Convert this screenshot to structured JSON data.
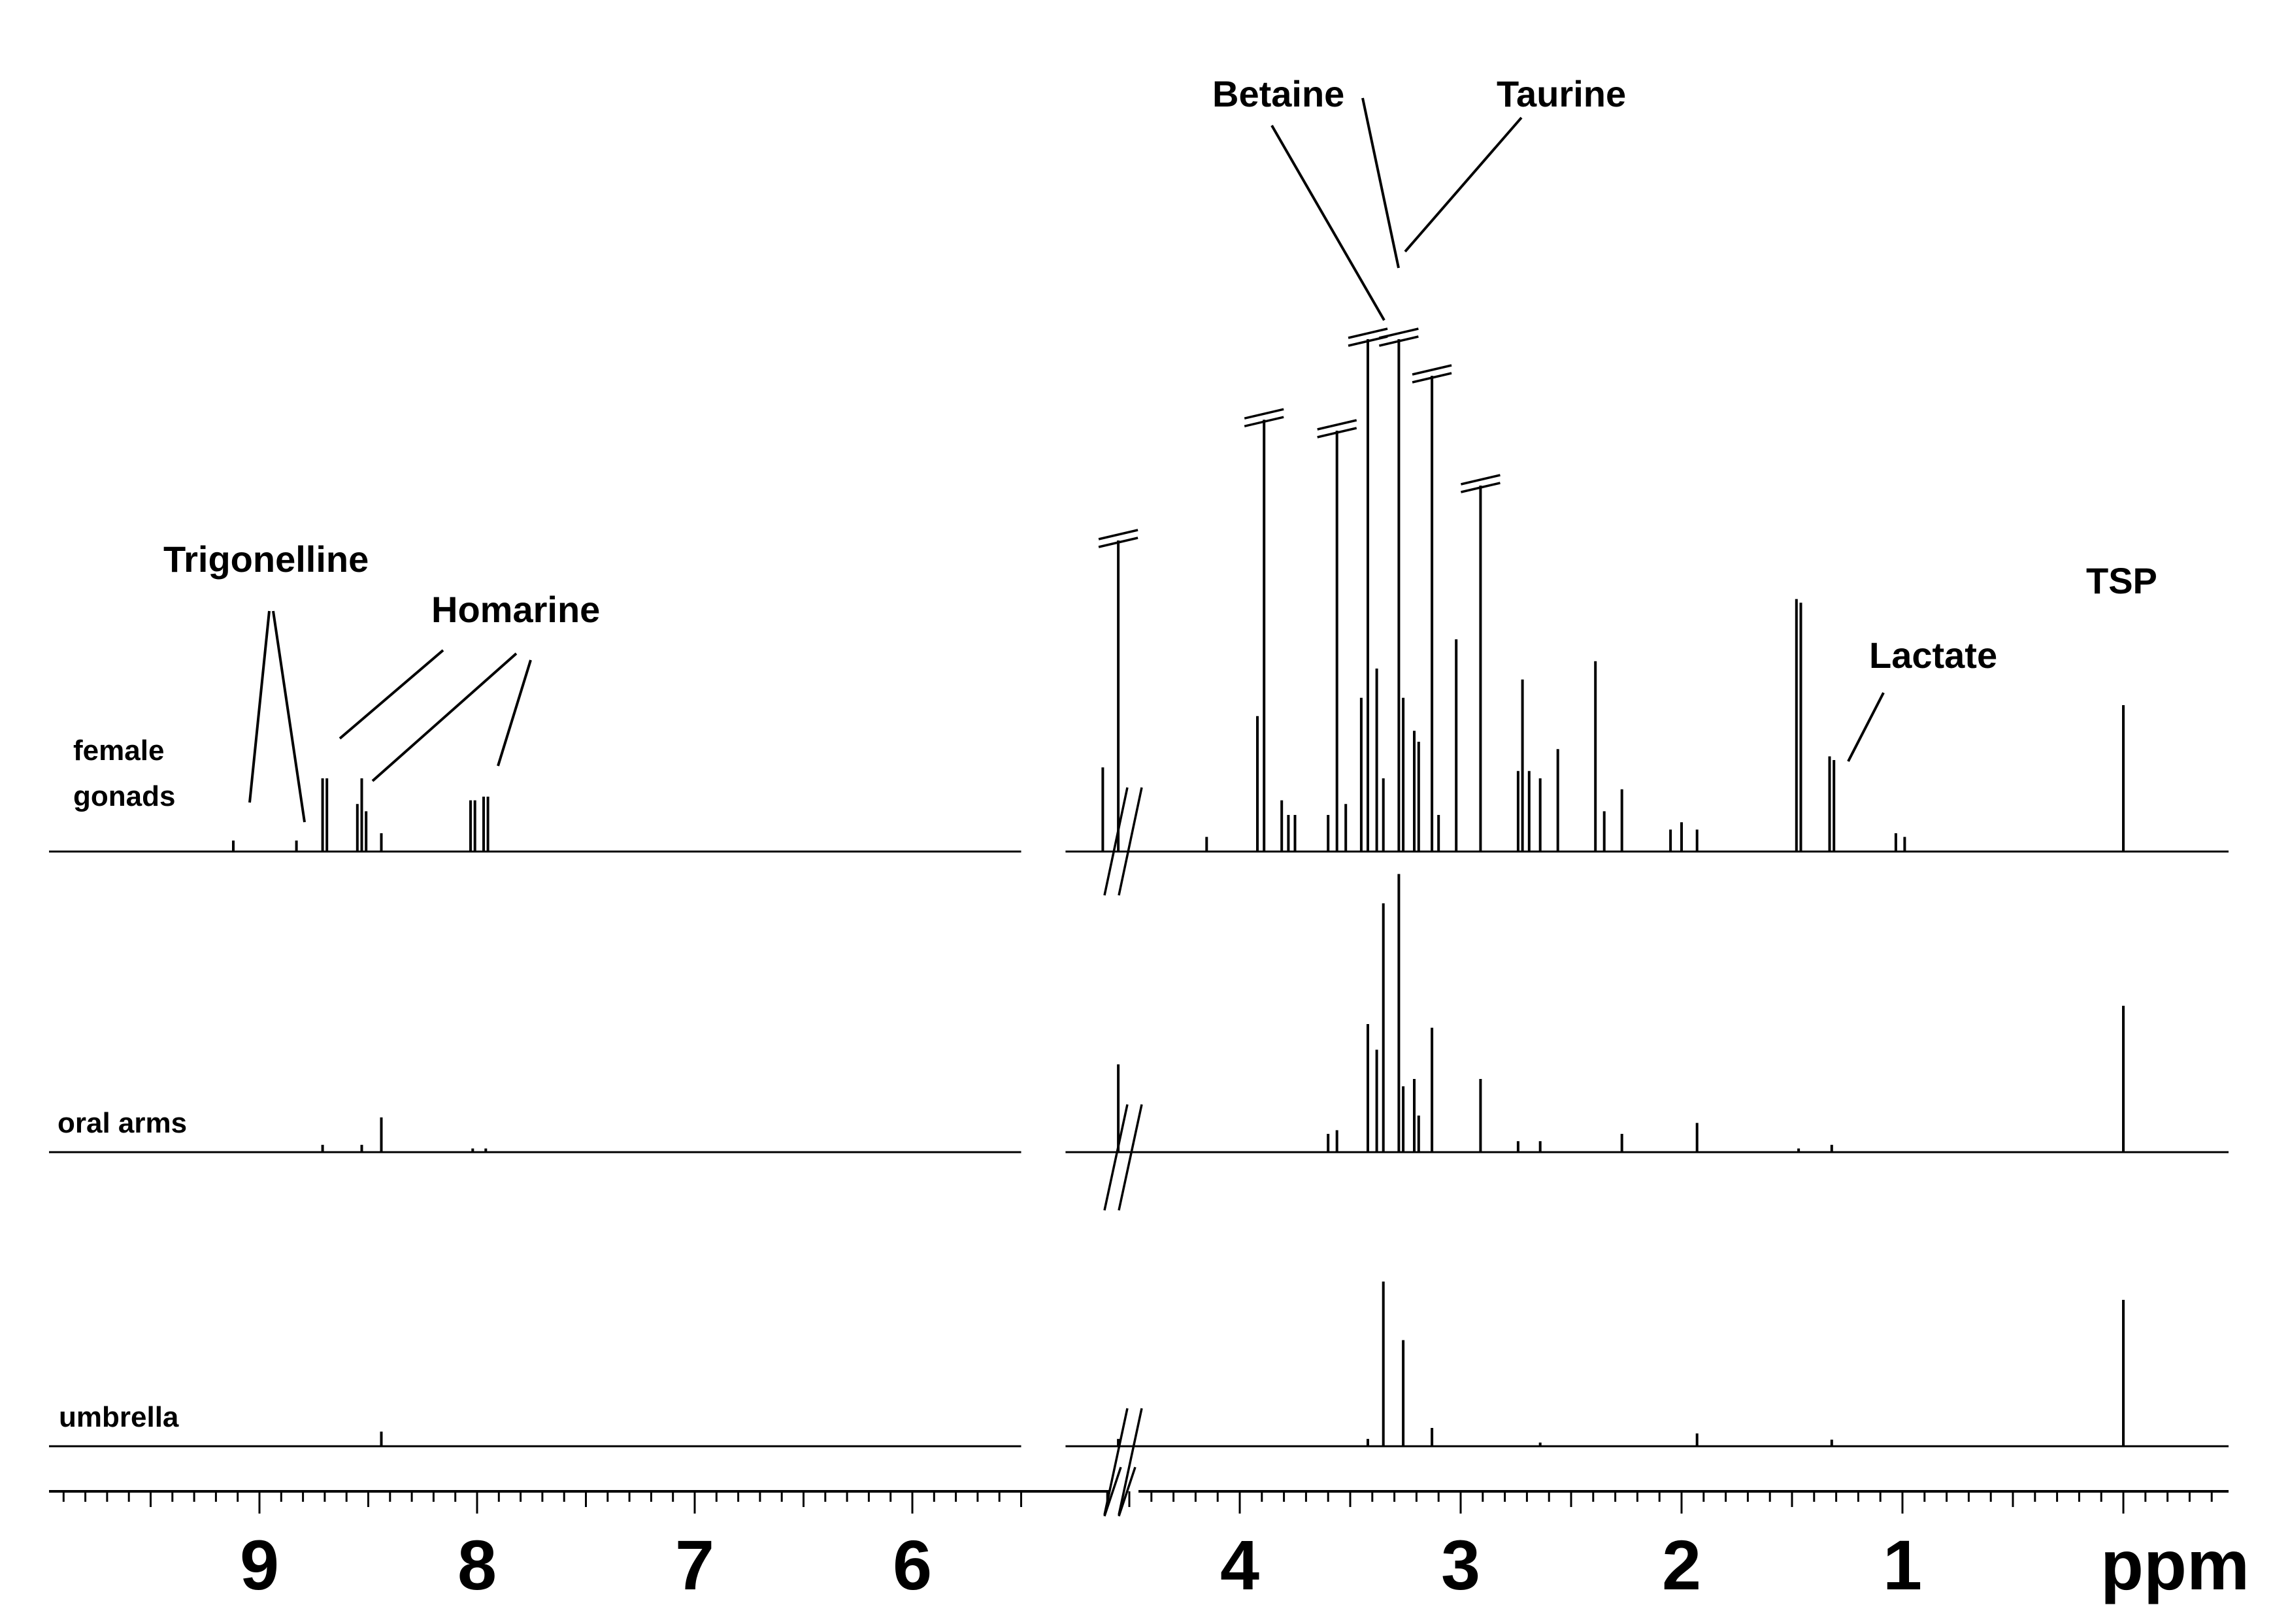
{
  "chart_data": {
    "type": "line",
    "title": "",
    "xlabel": "ppm",
    "ylabel": "",
    "x_reversed": true,
    "axis_break": [
      4.7,
      5.5
    ],
    "x_ticks": [
      {
        "value": 9,
        "label": "9"
      },
      {
        "value": 8,
        "label": "8"
      },
      {
        "value": 7,
        "label": "7"
      },
      {
        "value": 6,
        "label": "6"
      },
      {
        "value": 4,
        "label": "4"
      },
      {
        "value": 3,
        "label": "3"
      },
      {
        "value": 2,
        "label": "2"
      },
      {
        "value": 1,
        "label": "1"
      }
    ],
    "grid": false,
    "series": [
      {
        "name": "female gonads",
        "label_lines": [
          "female",
          "gonads"
        ],
        "peaks": [
          {
            "ppm": 9.12,
            "h": 0.03
          },
          {
            "ppm": 8.83,
            "h": 0.03
          },
          {
            "ppm": 8.71,
            "h": 0.2
          },
          {
            "ppm": 8.69,
            "h": 0.2
          },
          {
            "ppm": 8.55,
            "h": 0.13
          },
          {
            "ppm": 8.53,
            "h": 0.2
          },
          {
            "ppm": 8.51,
            "h": 0.11
          },
          {
            "ppm": 8.44,
            "h": 0.05
          },
          {
            "ppm": 8.03,
            "h": 0.14
          },
          {
            "ppm": 8.01,
            "h": 0.14
          },
          {
            "ppm": 7.97,
            "h": 0.15
          },
          {
            "ppm": 7.95,
            "h": 0.15
          },
          {
            "ppm": 4.62,
            "h": 0.23
          },
          {
            "ppm": 4.55,
            "h": 0.85,
            "clipped": true
          },
          {
            "ppm": 4.15,
            "h": 0.04
          },
          {
            "ppm": 3.92,
            "h": 0.37
          },
          {
            "ppm": 3.89,
            "h": 1.18,
            "clipped": true
          },
          {
            "ppm": 3.81,
            "h": 0.14
          },
          {
            "ppm": 3.78,
            "h": 0.1
          },
          {
            "ppm": 3.75,
            "h": 0.1
          },
          {
            "ppm": 3.6,
            "h": 0.1
          },
          {
            "ppm": 3.56,
            "h": 1.15,
            "clipped": true
          },
          {
            "ppm": 3.52,
            "h": 0.13
          },
          {
            "ppm": 3.45,
            "h": 0.42
          },
          {
            "ppm": 3.42,
            "h": 1.4,
            "clipped": true
          },
          {
            "ppm": 3.38,
            "h": 0.5
          },
          {
            "ppm": 3.35,
            "h": 0.2
          },
          {
            "ppm": 3.28,
            "h": 1.4,
            "clipped": true
          },
          {
            "ppm": 3.26,
            "h": 0.42
          },
          {
            "ppm": 3.21,
            "h": 0.33
          },
          {
            "ppm": 3.19,
            "h": 0.3
          },
          {
            "ppm": 3.13,
            "h": 1.3,
            "clipped": true
          },
          {
            "ppm": 3.1,
            "h": 0.1
          },
          {
            "ppm": 3.02,
            "h": 0.58
          },
          {
            "ppm": 2.91,
            "h": 1.0,
            "clipped": true
          },
          {
            "ppm": 2.74,
            "h": 0.22
          },
          {
            "ppm": 2.72,
            "h": 0.47
          },
          {
            "ppm": 2.69,
            "h": 0.22
          },
          {
            "ppm": 2.64,
            "h": 0.2
          },
          {
            "ppm": 2.56,
            "h": 0.28
          },
          {
            "ppm": 2.39,
            "h": 0.52
          },
          {
            "ppm": 2.35,
            "h": 0.11
          },
          {
            "ppm": 2.27,
            "h": 0.17
          },
          {
            "ppm": 2.05,
            "h": 0.06
          },
          {
            "ppm": 2.0,
            "h": 0.08
          },
          {
            "ppm": 1.93,
            "h": 0.06
          },
          {
            "ppm": 1.48,
            "h": 0.69
          },
          {
            "ppm": 1.46,
            "h": 0.68
          },
          {
            "ppm": 1.33,
            "h": 0.26
          },
          {
            "ppm": 1.31,
            "h": 0.25
          },
          {
            "ppm": 1.03,
            "h": 0.05
          },
          {
            "ppm": 0.99,
            "h": 0.04
          },
          {
            "ppm": 0.0,
            "h": 0.4
          }
        ]
      },
      {
        "name": "oral arms",
        "label_lines": [
          "oral arms"
        ],
        "peaks": [
          {
            "ppm": 8.71,
            "h": 0.02
          },
          {
            "ppm": 8.53,
            "h": 0.02
          },
          {
            "ppm": 8.44,
            "h": 0.095
          },
          {
            "ppm": 8.02,
            "h": 0.01
          },
          {
            "ppm": 7.96,
            "h": 0.01
          },
          {
            "ppm": 4.55,
            "h": 0.24
          },
          {
            "ppm": 3.6,
            "h": 0.05
          },
          {
            "ppm": 3.56,
            "h": 0.06
          },
          {
            "ppm": 3.42,
            "h": 0.35
          },
          {
            "ppm": 3.38,
            "h": 0.28
          },
          {
            "ppm": 3.35,
            "h": 0.68
          },
          {
            "ppm": 3.28,
            "h": 0.76
          },
          {
            "ppm": 3.26,
            "h": 0.18
          },
          {
            "ppm": 3.21,
            "h": 0.2
          },
          {
            "ppm": 3.19,
            "h": 0.1
          },
          {
            "ppm": 3.13,
            "h": 0.34
          },
          {
            "ppm": 2.91,
            "h": 0.2
          },
          {
            "ppm": 2.74,
            "h": 0.03
          },
          {
            "ppm": 2.64,
            "h": 0.03
          },
          {
            "ppm": 2.27,
            "h": 0.05
          },
          {
            "ppm": 1.93,
            "h": 0.08
          },
          {
            "ppm": 1.47,
            "h": 0.01
          },
          {
            "ppm": 1.32,
            "h": 0.02
          },
          {
            "ppm": 0.0,
            "h": 0.4
          }
        ]
      },
      {
        "name": "umbrella",
        "label_lines": [
          "umbrella"
        ],
        "peaks": [
          {
            "ppm": 8.44,
            "h": 0.04
          },
          {
            "ppm": 4.55,
            "h": 0.02
          },
          {
            "ppm": 3.42,
            "h": 0.02
          },
          {
            "ppm": 3.35,
            "h": 0.45
          },
          {
            "ppm": 3.26,
            "h": 0.29
          },
          {
            "ppm": 3.13,
            "h": 0.05
          },
          {
            "ppm": 2.64,
            "h": 0.01
          },
          {
            "ppm": 1.93,
            "h": 0.035
          },
          {
            "ppm": 1.32,
            "h": 0.018
          },
          {
            "ppm": 0.0,
            "h": 0.4
          }
        ]
      }
    ],
    "annotations": [
      {
        "text": "Trigonelline",
        "targets_ppm": [
          9.12,
          8.83
        ]
      },
      {
        "text": "Homarine",
        "targets_ppm": [
          8.71,
          8.53,
          7.95
        ]
      },
      {
        "text": "Betaine",
        "targets_ppm": [
          3.42,
          3.28
        ]
      },
      {
        "text": "Taurine",
        "targets_ppm": [
          3.28
        ]
      },
      {
        "text": "Lactate",
        "targets_ppm": [
          1.32
        ]
      },
      {
        "text": "TSP",
        "targets_ppm": [
          0.0
        ]
      }
    ]
  }
}
